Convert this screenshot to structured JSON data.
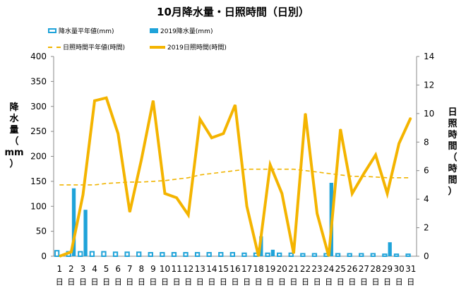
{
  "chart_data": {
    "type": "bar+line",
    "title": "10月降水量・日照時間（日別）",
    "ylabel_left": [
      "降",
      "水",
      "量",
      "（",
      "mm",
      "）"
    ],
    "ylabel_right": [
      "日",
      "照",
      "時",
      "間",
      "（",
      "時",
      "間",
      "）"
    ],
    "ylim_left": [
      0,
      400
    ],
    "ylim_right": [
      0,
      14
    ],
    "yticks_left": [
      0,
      50,
      100,
      150,
      200,
      250,
      300,
      350,
      400
    ],
    "yticks_right": [
      0,
      2,
      4,
      6,
      8,
      10,
      12,
      14
    ],
    "categories": [
      "1",
      "2",
      "3",
      "4",
      "5",
      "6",
      "7",
      "8",
      "9",
      "10",
      "11",
      "12",
      "13",
      "14",
      "15",
      "16",
      "17",
      "18",
      "19",
      "20",
      "21",
      "22",
      "23",
      "24",
      "25",
      "26",
      "27",
      "28",
      "29",
      "30",
      "31"
    ],
    "day_label": "日",
    "legend": {
      "normal_precip": "降水量平年値(mm)",
      "precip_2019": "2019降水量(mm)",
      "normal_sun": "日照時間平年値(時間)",
      "sun_2019": "2019日照時間(時間)"
    },
    "series": [
      {
        "name": "降水量平年値(mm)",
        "type": "bar",
        "axis": "left",
        "color": "#1fa3d9",
        "values": [
          11,
          9,
          9,
          9,
          9,
          8,
          8,
          8,
          7,
          7,
          7,
          7,
          7,
          7,
          7,
          7,
          6,
          6,
          6,
          6,
          6,
          5,
          5,
          5,
          5,
          5,
          5,
          5,
          4,
          4,
          4
        ]
      },
      {
        "name": "2019降水量(mm)",
        "type": "bar",
        "axis": "left",
        "color": "#1fa3d9",
        "values": [
          0,
          136,
          93,
          0,
          0,
          0,
          0,
          0,
          0,
          0,
          0,
          0,
          0,
          0,
          0,
          0,
          0,
          40,
          13,
          0,
          0,
          0,
          0,
          147,
          0,
          0,
          0,
          0,
          28,
          0,
          0
        ]
      },
      {
        "name": "日照時間平年値(時間)",
        "type": "line",
        "axis": "right",
        "color": "#f0b400",
        "dashed": true,
        "values": [
          5.0,
          5.0,
          5.0,
          5.0,
          5.1,
          5.15,
          5.2,
          5.2,
          5.25,
          5.3,
          5.4,
          5.5,
          5.7,
          5.8,
          5.9,
          6.0,
          6.1,
          6.1,
          6.1,
          6.1,
          6.1,
          6.0,
          5.9,
          5.8,
          5.7,
          5.6,
          5.6,
          5.55,
          5.5,
          5.5,
          5.5
        ]
      },
      {
        "name": "2019日照時間(時間)",
        "type": "line",
        "axis": "right",
        "color": "#f4b400",
        "values": [
          0.0,
          0.3,
          4.3,
          10.9,
          11.1,
          8.6,
          3.1,
          6.8,
          10.9,
          4.4,
          4.1,
          2.9,
          9.6,
          8.3,
          8.6,
          10.6,
          3.5,
          0.0,
          6.4,
          4.4,
          0.2,
          10.0,
          3.0,
          0.0,
          8.9,
          4.4,
          5.8,
          7.1,
          4.4,
          7.9,
          9.7
        ]
      }
    ]
  }
}
